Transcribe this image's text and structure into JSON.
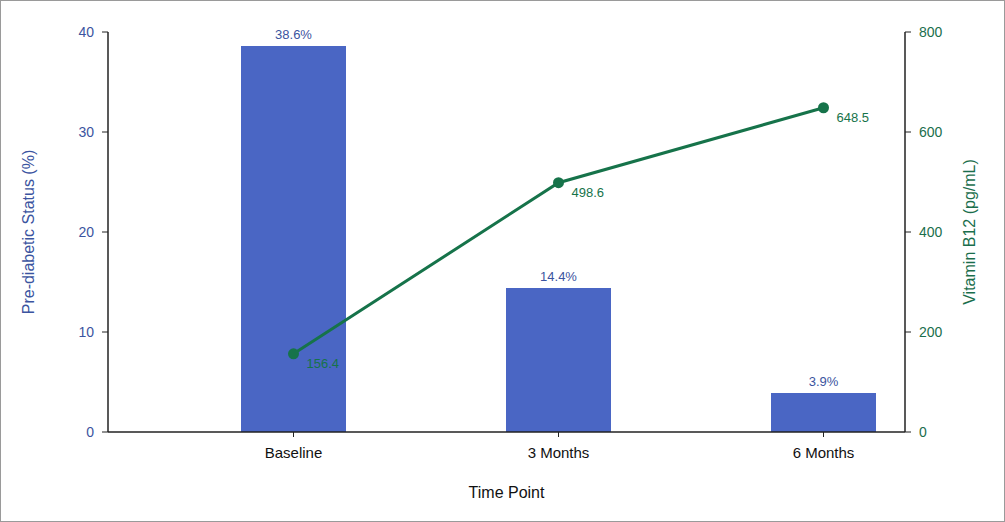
{
  "chart_data": {
    "type": "bar",
    "categories": [
      "Baseline",
      "3 Months",
      "6 Months"
    ],
    "x_label": "Time Point",
    "y_label": "Pre-diabetic Status (%)",
    "y2_label": "Vitamin B12 (pg/mL)",
    "ylim": [
      0,
      40
    ],
    "yticks": [
      0,
      10,
      20,
      30,
      40
    ],
    "y2lim": [
      0,
      800
    ],
    "y2ticks": [
      0,
      200,
      400,
      600,
      800
    ],
    "grid": false,
    "data_labels": true,
    "series": [
      {
        "type": "bar",
        "color": "#4a66c4",
        "values": [
          38.6,
          14.4,
          3.9
        ],
        "value_labels": [
          "38.6%",
          "14.4%",
          "3.9%"
        ]
      },
      {
        "type": "line",
        "axis": "y2",
        "color": "#16734a",
        "marker": "circle",
        "line_style": "solid",
        "values": [
          156.4,
          498.6,
          648.5
        ]
      }
    ]
  }
}
